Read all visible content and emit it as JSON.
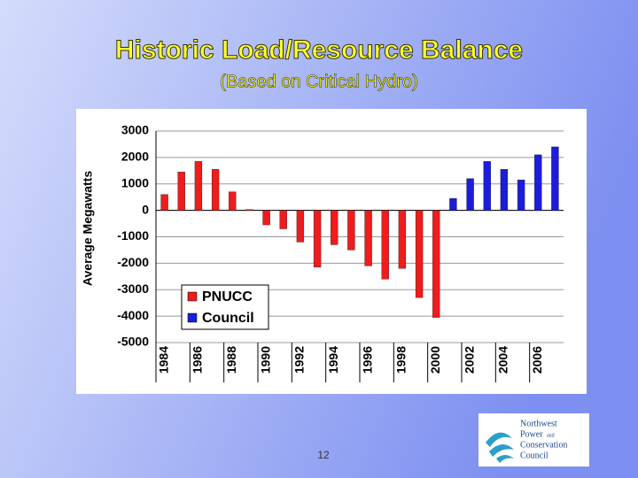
{
  "slide_title": "Historic Load/Resource Balance",
  "slide_subtitle": "(Based on Critical Hydro)",
  "page_number": "12",
  "logo": {
    "lines": [
      "Northwest",
      "Power",
      "and",
      "Conservation",
      "Council"
    ]
  },
  "chart_data": {
    "type": "bar",
    "y_label": "Average Megawatts",
    "categories": [
      "1984",
      null,
      "1986",
      null,
      "1988",
      null,
      "1990",
      null,
      "1992",
      null,
      "1994",
      null,
      "1996",
      null,
      "1998",
      null,
      "2000",
      null,
      "2002",
      null,
      "2004",
      null,
      "2006",
      null
    ],
    "series": [
      {
        "name": "PNUCC",
        "color": "#ee1c1c",
        "values": [
          600,
          1450,
          1850,
          1550,
          700,
          30,
          -550,
          -700,
          -1200,
          -2150,
          -1300,
          -1500,
          -2100,
          -2600,
          -2200,
          -3300,
          -4050,
          null,
          null,
          null,
          null,
          null,
          null,
          null
        ]
      },
      {
        "name": "Council",
        "color": "#1c1cdd",
        "values": [
          null,
          null,
          null,
          null,
          null,
          null,
          null,
          null,
          null,
          null,
          null,
          null,
          null,
          null,
          null,
          null,
          null,
          450,
          1200,
          1850,
          1550,
          1150,
          2100,
          2400
        ]
      }
    ],
    "ylim": [
      -5000,
      3000
    ],
    "yticks": [
      -5000,
      -4000,
      -3000,
      -2000,
      -1000,
      0,
      1000,
      2000,
      3000
    ],
    "grid": true,
    "legend": "lower-left"
  }
}
